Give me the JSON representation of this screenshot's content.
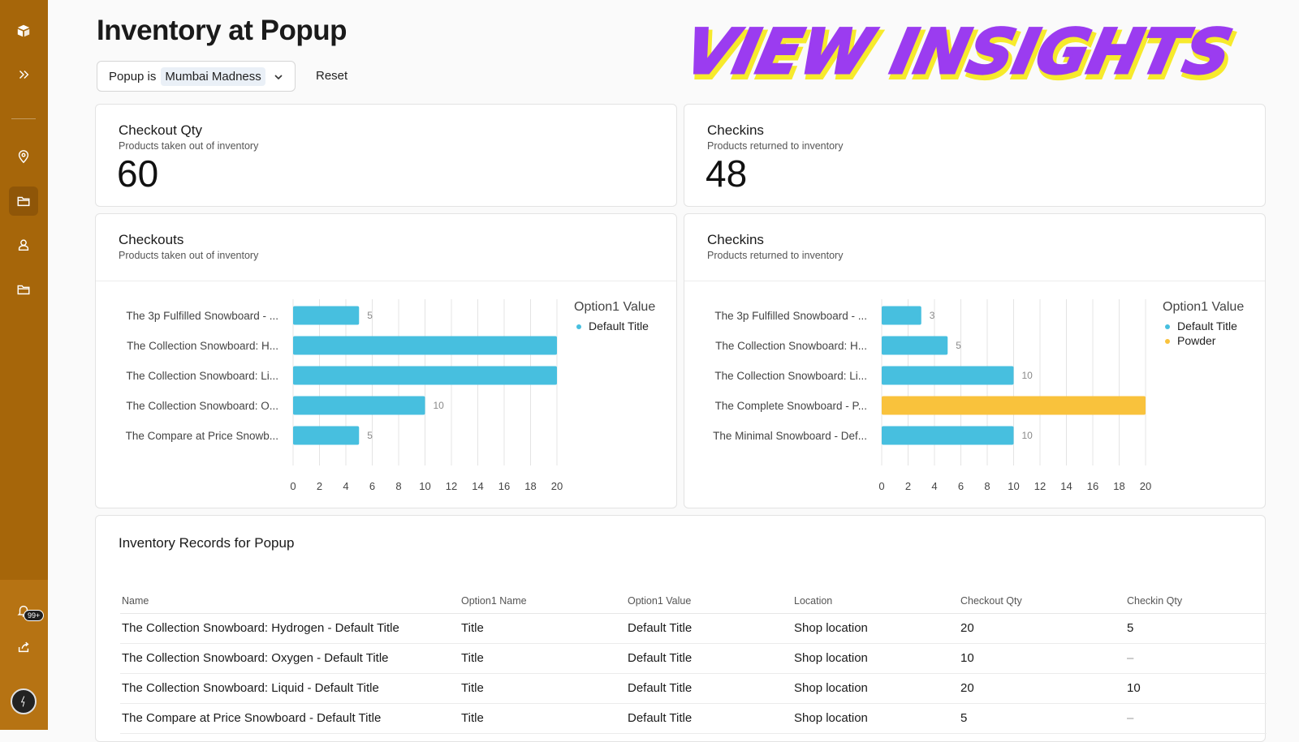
{
  "sidebar": {
    "icons": [
      "logo-icon",
      "expand-icon",
      "location-pin-icon",
      "folder-icon",
      "user-icon",
      "folder-icon",
      "bell-icon",
      "share-icon"
    ],
    "notification_badge": "99+",
    "accent": "#a6660a"
  },
  "header": {
    "title": "Inventory at Popup",
    "filter_prefix": "Popup is",
    "filter_value": "Mumbai Madness",
    "reset_label": "Reset",
    "banner_text": "VIEW INSIGHTS"
  },
  "kpis": [
    {
      "title": "Checkout Qty",
      "subtitle": "Products taken out of inventory",
      "value": "60"
    },
    {
      "title": "Checkins",
      "subtitle": "Products returned to inventory",
      "value": "48"
    }
  ],
  "charts": [
    {
      "title": "Checkouts",
      "subtitle": "Products taken out of inventory"
    },
    {
      "title": "Checkins",
      "subtitle": "Products returned to inventory"
    }
  ],
  "chart_data": [
    {
      "type": "bar",
      "orientation": "horizontal",
      "title": "Checkouts",
      "categories": [
        "The 3p Fulfilled Snowboard - ...",
        "The Collection Snowboard: H...",
        "The Collection Snowboard: Li...",
        "The Collection Snowboard: O...",
        "The Compare at Price Snowb..."
      ],
      "values": [
        5,
        20,
        20,
        10,
        5
      ],
      "data_labels": [
        "5",
        "",
        "",
        "10",
        "5"
      ],
      "series_colors": [
        "#47bfdf",
        "#47bfdf",
        "#47bfdf",
        "#47bfdf",
        "#47bfdf"
      ],
      "xlim": [
        0,
        20
      ],
      "xticks": [
        "0",
        "2",
        "4",
        "6",
        "8",
        "10",
        "12",
        "14",
        "16",
        "18",
        "20"
      ],
      "legend_title": "Option1 Value",
      "legend": [
        {
          "name": "Default Title",
          "color": "#47bfdf"
        }
      ],
      "grid": true
    },
    {
      "type": "bar",
      "orientation": "horizontal",
      "title": "Checkins",
      "categories": [
        "The 3p Fulfilled Snowboard - ...",
        "The Collection Snowboard: H...",
        "The Collection Snowboard: Li...",
        "The Complete Snowboard - P...",
        "The Minimal Snowboard - Def..."
      ],
      "values": [
        3,
        5,
        10,
        20,
        10
      ],
      "data_labels": [
        "3",
        "5",
        "10",
        "",
        "10"
      ],
      "series_colors": [
        "#47bfdf",
        "#47bfdf",
        "#47bfdf",
        "#f9c23c",
        "#47bfdf"
      ],
      "xlim": [
        0,
        20
      ],
      "xticks": [
        "0",
        "2",
        "4",
        "6",
        "8",
        "10",
        "12",
        "14",
        "16",
        "18",
        "20"
      ],
      "legend_title": "Option1 Value",
      "legend": [
        {
          "name": "Default Title",
          "color": "#47bfdf"
        },
        {
          "name": "Powder",
          "color": "#f9c23c"
        }
      ],
      "grid": true
    }
  ],
  "table": {
    "title": "Inventory Records for Popup",
    "columns": [
      "Name",
      "Option1 Name",
      "Option1 Value",
      "Location",
      "Checkout Qty",
      "Checkin Qty"
    ],
    "rows": [
      [
        "The Collection Snowboard: Hydrogen - Default Title",
        "Title",
        "Default Title",
        "Shop location",
        "20",
        "5"
      ],
      [
        "The Collection Snowboard: Oxygen - Default Title",
        "Title",
        "Default Title",
        "Shop location",
        "10",
        "–"
      ],
      [
        "The Collection Snowboard: Liquid - Default Title",
        "Title",
        "Default Title",
        "Shop location",
        "20",
        "10"
      ],
      [
        "The Compare at Price Snowboard - Default Title",
        "Title",
        "Default Title",
        "Shop location",
        "5",
        "–"
      ]
    ]
  }
}
